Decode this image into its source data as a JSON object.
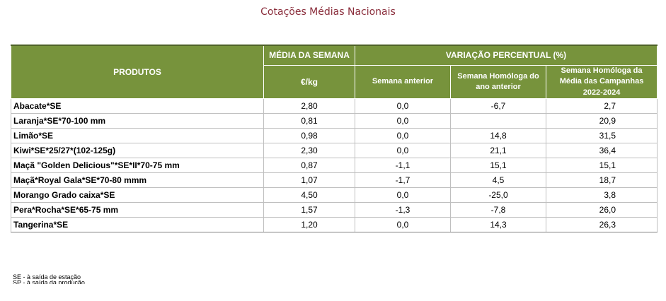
{
  "title": "Cotações Médias Nacionais",
  "header": {
    "produtos": "PRODUTOS",
    "media_semana": "MÉDIA DA SEMANA",
    "unit": "€/kg",
    "variacao": "VARIAÇÃO PERCENTUAL (%)",
    "semana_anterior": "Semana anterior",
    "semana_homologa": "Semana Homóloga do ano anterior",
    "semana_homologa_media": "Semana Homóloga da Média das Campanhas 2022-2024"
  },
  "rows": [
    {
      "produto": "Abacate*SE",
      "media": "2,80",
      "anterior": "0,0",
      "homologa": "-6,7",
      "campanhas": "2,7"
    },
    {
      "produto": "Laranja*SE*70-100 mm",
      "media": "0,81",
      "anterior": "0,0",
      "homologa": "",
      "campanhas": "20,9"
    },
    {
      "produto": "Limão*SE",
      "media": "0,98",
      "anterior": "0,0",
      "homologa": "14,8",
      "campanhas": "31,5"
    },
    {
      "produto": "Kiwi*SE*25/27*(102-125g)",
      "media": "2,30",
      "anterior": "0,0",
      "homologa": "21,1",
      "campanhas": "36,4"
    },
    {
      "produto": "Maçã \"Golden Delicious\"*SE*II*70-75 mm",
      "media": "0,87",
      "anterior": "-1,1",
      "homologa": "15,1",
      "campanhas": "15,1"
    },
    {
      "produto": "Maçã*Royal Gala*SE*70-80 mmm",
      "media": "1,07",
      "anterior": "-1,7",
      "homologa": "4,5",
      "campanhas": "18,7"
    },
    {
      "produto": "Morango Grado caixa*SE",
      "media": "4,50",
      "anterior": "0,0",
      "homologa": "-25,0",
      "campanhas": "3,8"
    },
    {
      "produto": "Pera*Rocha*SE*65-75 mm",
      "media": "1,57",
      "anterior": "-1,3",
      "homologa": "-7,8",
      "campanhas": "26,0"
    },
    {
      "produto": "Tangerina*SE",
      "media": "1,20",
      "anterior": "0,0",
      "homologa": "14,3",
      "campanhas": "26,3"
    }
  ],
  "footnotes": {
    "se": "SE - à saída de estação",
    "sp": "SP - à saída da produção"
  }
}
